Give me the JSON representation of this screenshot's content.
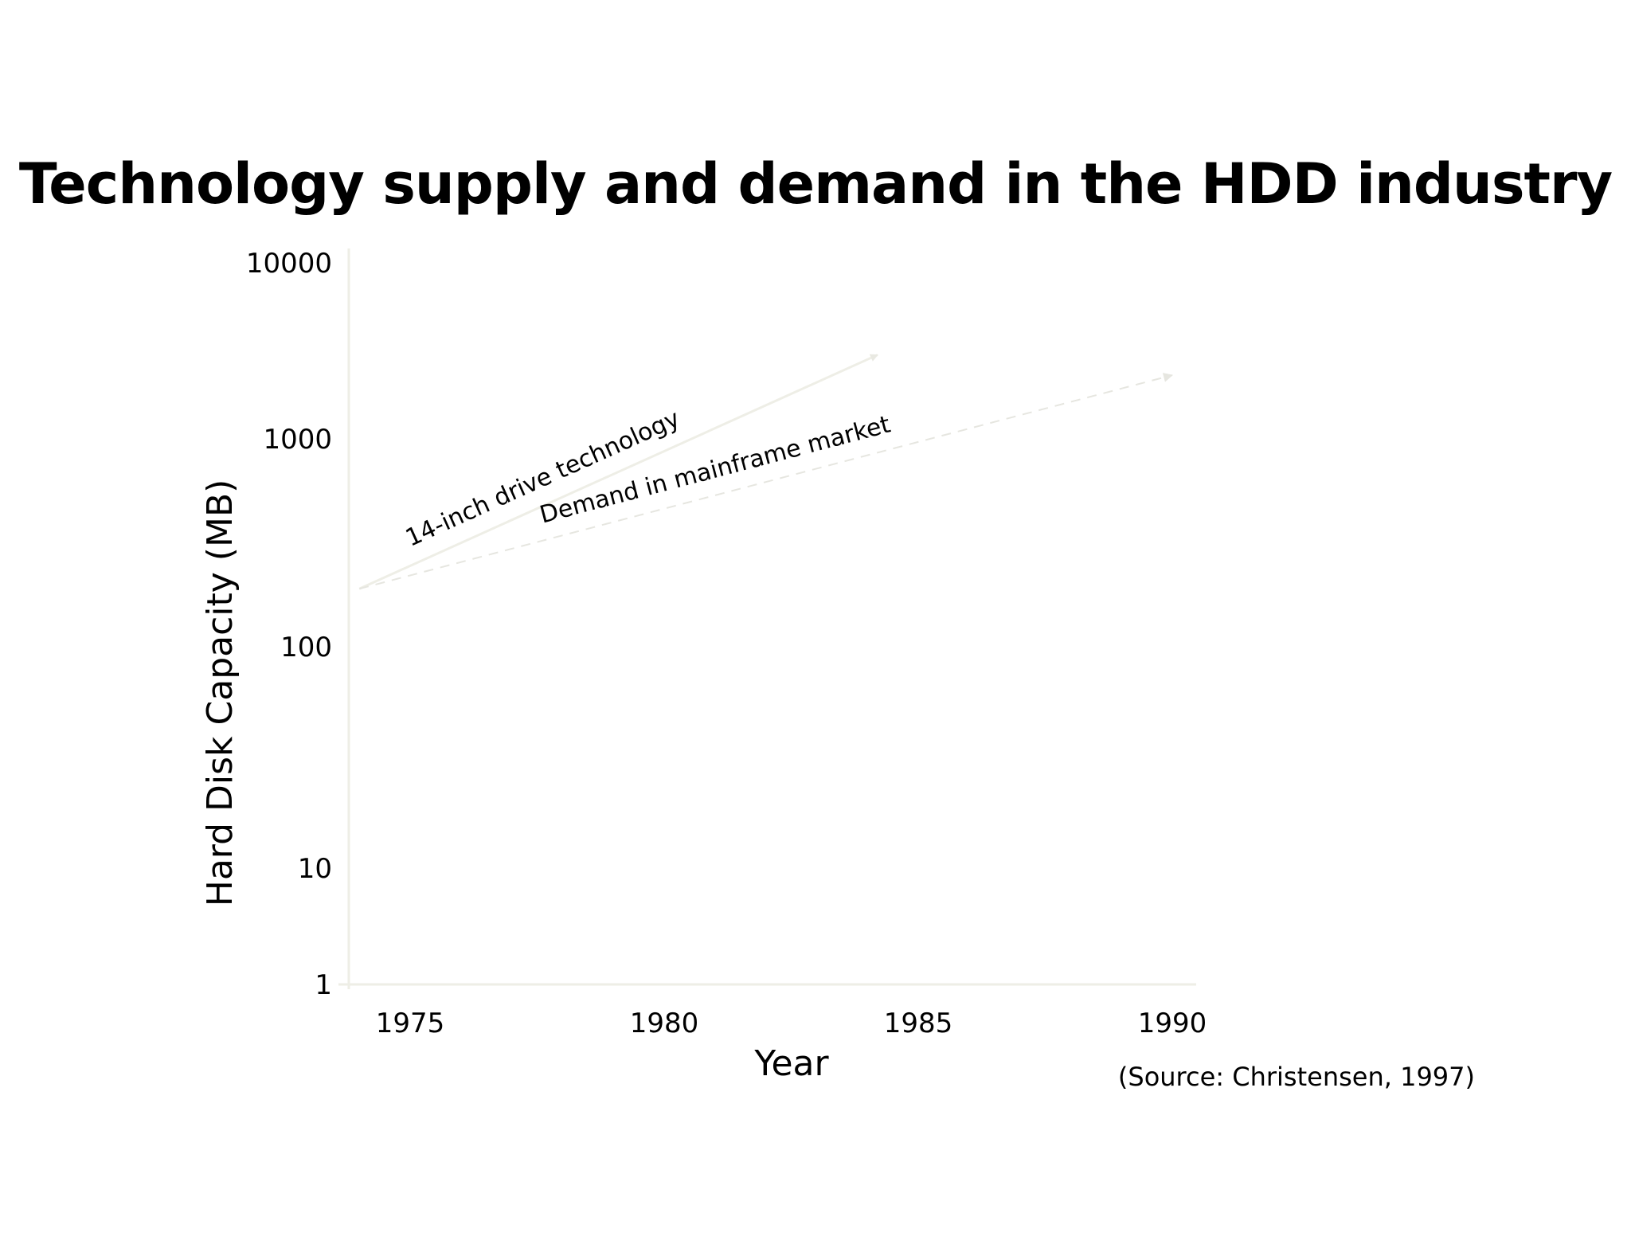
{
  "title": "Technology supply and demand in the HDD industry",
  "source": "(Source: Christensen, 1997)",
  "chart_data": {
    "type": "line",
    "title": "Technology supply and demand in the HDD industry",
    "xlabel": "Year",
    "ylabel": "Hard Disk Capacity (MB)",
    "xlim": [
      1973,
      1990.5
    ],
    "ylim": [
      1,
      10000
    ],
    "y_scale": "log",
    "x_ticks": [
      1975,
      1980,
      1985,
      1990
    ],
    "x_tick_labels": [
      "1975",
      "1980",
      "1985",
      "1990"
    ],
    "y_ticks": [
      1,
      10,
      100,
      1000,
      10000
    ],
    "y_tick_labels": [
      "1",
      "10",
      "100",
      "1000",
      "10000"
    ],
    "grid": false,
    "colors": {
      "axis": "#eeeee6",
      "tech_line": "#eeeee6",
      "demand_line": "#e6e6e0"
    },
    "series": [
      {
        "name": "14-inch drive technology",
        "style": "solid-arrow",
        "x": [
          1974,
          1984.2
        ],
        "y": [
          190,
          3000
        ]
      },
      {
        "name": "Demand in mainframe market",
        "style": "dashed-arrow",
        "x": [
          1974,
          1990
        ],
        "y": [
          190,
          2300
        ]
      }
    ]
  }
}
